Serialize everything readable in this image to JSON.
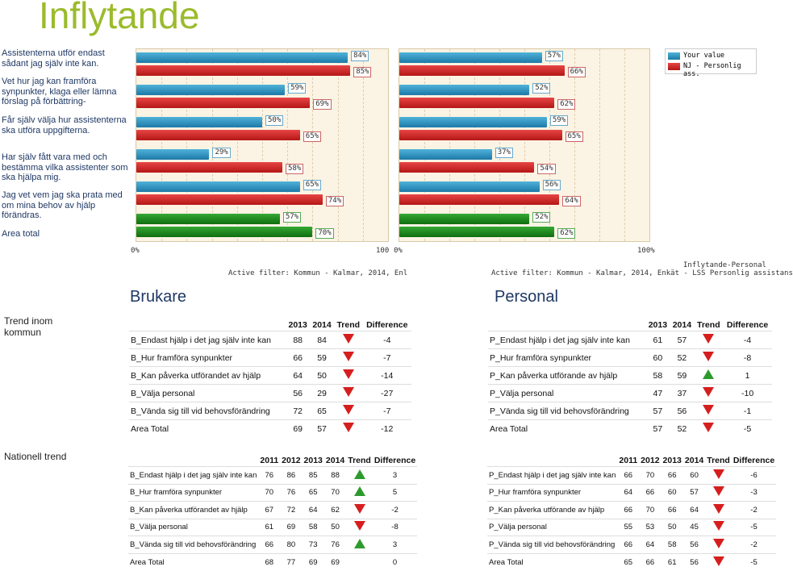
{
  "title": "Inflytande",
  "questions": [
    "Assistenterna utför endast sådant jag själv inte kan.",
    "Vet hur jag kan framföra synpunkter, klaga eller lämna förslag på förbättring-",
    "Får själv välja hur assistenterna ska utföra uppgifterna.",
    "Har själv fått vara med och bestämma vilka assistenter som ska hjälpa mig.",
    "Jag vet vem jag ska prata med  om mina behov av hjälp förändras.",
    "Area total"
  ],
  "chart_data": [
    {
      "type": "bar",
      "series": [
        {
          "name": "Your value",
          "values": [
            84,
            59,
            50,
            29,
            65,
            57
          ]
        },
        {
          "name": "NJ - Personlig ass.",
          "values": [
            85,
            69,
            65,
            58,
            74,
            70
          ]
        }
      ],
      "xlim": [
        0,
        100
      ],
      "tick_labels": [
        "0%",
        "100"
      ],
      "filter": "Active filter: Kommun - Kalmar, 2014, Enl"
    },
    {
      "type": "bar",
      "series": [
        {
          "name": "Your value",
          "values": [
            57,
            52,
            59,
            37,
            56,
            52
          ]
        },
        {
          "name": "NJ - Personlig ass.",
          "values": [
            66,
            62,
            65,
            54,
            64,
            62
          ]
        }
      ],
      "xlim": [
        0,
        100
      ],
      "tick_labels": [
        "0%",
        "100%"
      ],
      "filter": "Active filter: Kommun - Kalmar, 2014, Enkät - LSS Personlig assistans",
      "caption": "Inflytande-Personal"
    }
  ],
  "legend": {
    "your_value": "Your value",
    "nj": "NJ - Personlig ass."
  },
  "sections": {
    "brukare": "Brukare",
    "personal": "Personal"
  },
  "side": {
    "trend_kommun": "Trend inom kommun",
    "nationell": "Nationell trend"
  },
  "colors": {
    "blue": "#1d79a8",
    "red": "#b41616",
    "green": "#0f6e0f",
    "title": "#9bbb2c"
  },
  "kommun_headers": [
    "",
    "2013",
    "2014",
    "Trend",
    "Difference"
  ],
  "nat_headers": [
    "",
    "2011",
    "2012",
    "2013",
    "2014",
    "Trend",
    "Difference"
  ],
  "b_kommun": [
    {
      "name": "B_Endast hjälp i det jag själv inte kan",
      "y2013": "88",
      "y2014": "84",
      "trend": "down",
      "diff": "-4"
    },
    {
      "name": "B_Hur framföra synpunkter",
      "y2013": "66",
      "y2014": "59",
      "trend": "down",
      "diff": "-7"
    },
    {
      "name": "B_Kan påverka utförandet av hjälp",
      "y2013": "64",
      "y2014": "50",
      "trend": "down",
      "diff": "-14"
    },
    {
      "name": "B_Välja personal",
      "y2013": "56",
      "y2014": "29",
      "trend": "down",
      "diff": "-27"
    },
    {
      "name": "B_Vända sig till vid behovsförändring",
      "y2013": "72",
      "y2014": "65",
      "trend": "down",
      "diff": "-7"
    },
    {
      "name": "Area Total",
      "y2013": "69",
      "y2014": "57",
      "trend": "down",
      "diff": "-12"
    }
  ],
  "p_kommun": [
    {
      "name": "P_Endast hjälp i det jag själv inte kan",
      "y2013": "61",
      "y2014": "57",
      "trend": "down",
      "diff": "-4"
    },
    {
      "name": "P_Hur framföra synpunkter",
      "y2013": "60",
      "y2014": "52",
      "trend": "down",
      "diff": "-8"
    },
    {
      "name": "P_Kan påverka utförande av hjälp",
      "y2013": "58",
      "y2014": "59",
      "trend": "up",
      "diff": "1"
    },
    {
      "name": "P_Välja personal",
      "y2013": "47",
      "y2014": "37",
      "trend": "down",
      "diff": "-10"
    },
    {
      "name": "P_Vända sig till vid behovsförändring",
      "y2013": "57",
      "y2014": "56",
      "trend": "down",
      "diff": "-1"
    },
    {
      "name": "Area Total",
      "y2013": "57",
      "y2014": "52",
      "trend": "down",
      "diff": "-5"
    }
  ],
  "b_nat": [
    {
      "name": "B_Endast hjälp i det jag själv inte kan",
      "y2011": "76",
      "y2012": "86",
      "y2013": "85",
      "y2014": "88",
      "trend": "up",
      "diff": "3"
    },
    {
      "name": "B_Hur framföra synpunkter",
      "y2011": "70",
      "y2012": "76",
      "y2013": "65",
      "y2014": "70",
      "trend": "up",
      "diff": "5"
    },
    {
      "name": "B_Kan påverka utförandet av hjälp",
      "y2011": "67",
      "y2012": "72",
      "y2013": "64",
      "y2014": "62",
      "trend": "down",
      "diff": "-2"
    },
    {
      "name": "B_Välja personal",
      "y2011": "61",
      "y2012": "69",
      "y2013": "58",
      "y2014": "50",
      "trend": "down",
      "diff": "-8"
    },
    {
      "name": "B_Vända sig till vid behovsförändring",
      "y2011": "66",
      "y2012": "80",
      "y2013": "73",
      "y2014": "76",
      "trend": "up",
      "diff": "3"
    },
    {
      "name": "Area Total",
      "y2011": "68",
      "y2012": "77",
      "y2013": "69",
      "y2014": "69",
      "trend": "none",
      "diff": "0"
    }
  ],
  "p_nat": [
    {
      "name": "P_Endast hjälp i det jag själv inte kan",
      "y2011": "66",
      "y2012": "70",
      "y2013": "66",
      "y2014": "60",
      "trend": "down",
      "diff": "-6"
    },
    {
      "name": "P_Hur framföra synpunkter",
      "y2011": "64",
      "y2012": "66",
      "y2013": "60",
      "y2014": "57",
      "trend": "down",
      "diff": "-3"
    },
    {
      "name": "P_Kan påverka utförande av hjälp",
      "y2011": "66",
      "y2012": "70",
      "y2013": "66",
      "y2014": "64",
      "trend": "down",
      "diff": "-2"
    },
    {
      "name": "P_Välja personal",
      "y2011": "55",
      "y2012": "53",
      "y2013": "50",
      "y2014": "45",
      "trend": "down",
      "diff": "-5"
    },
    {
      "name": "P_Vända sig till vid behovsförändring",
      "y2011": "66",
      "y2012": "64",
      "y2013": "58",
      "y2014": "56",
      "trend": "down",
      "diff": "-2"
    },
    {
      "name": "Area Total",
      "y2011": "65",
      "y2012": "66",
      "y2013": "61",
      "y2014": "56",
      "trend": "down",
      "diff": "-5"
    }
  ]
}
